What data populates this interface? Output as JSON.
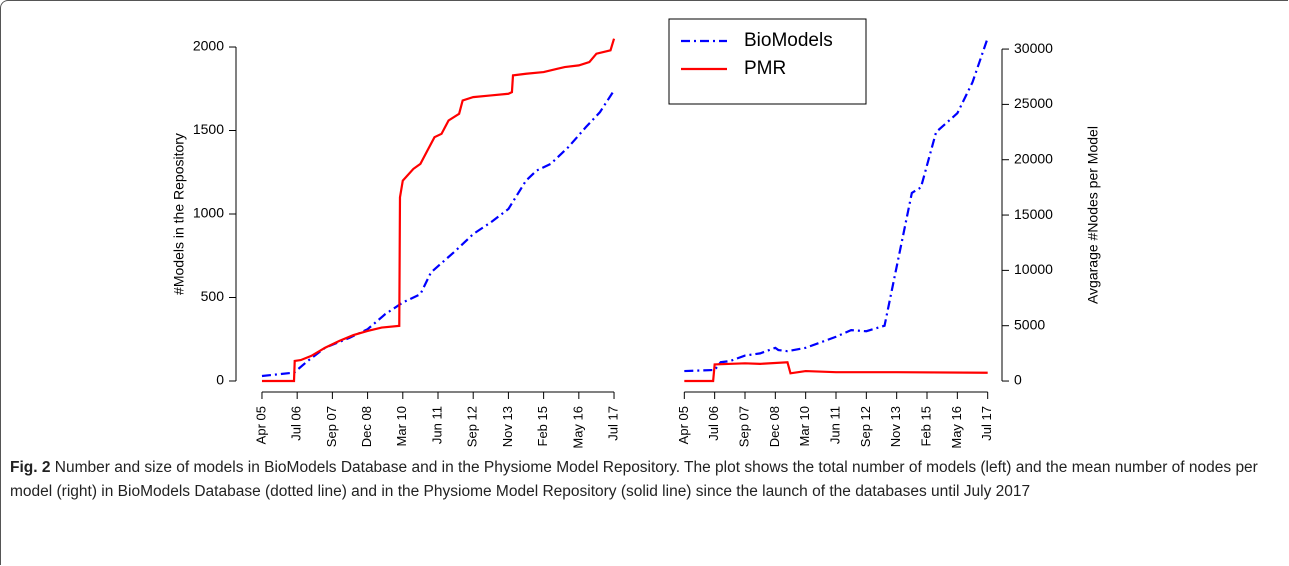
{
  "chart_data": [
    {
      "type": "line",
      "ylabel": "#Models in the Repository",
      "yaxis": "left",
      "xlim": [
        -0.34,
        10.34
      ],
      "xticks": [
        {
          "value": 0,
          "label": "Apr 05"
        },
        {
          "value": 1,
          "label": "Jul 06"
        },
        {
          "value": 2,
          "label": "Sep 07"
        },
        {
          "value": 3,
          "label": "Dec 08"
        },
        {
          "value": 4,
          "label": "Mar 10"
        },
        {
          "value": 5,
          "label": "Jun 11"
        },
        {
          "value": 6,
          "label": "Sep 12"
        },
        {
          "value": 7,
          "label": "Nov 13"
        },
        {
          "value": 8,
          "label": "Feb 15"
        },
        {
          "value": 9,
          "label": "May 16"
        },
        {
          "value": 10,
          "label": "Jul 17"
        }
      ],
      "ylim": [
        -48,
        2054
      ],
      "yticks": [
        0,
        500,
        1000,
        1500,
        2000
      ],
      "series": [
        {
          "name": "BioModels",
          "color": "#0000ff",
          "style": "dashdot",
          "x": [
            0,
            0.91,
            1.3,
            1.8,
            2.5,
            3.0,
            3.5,
            4.0,
            4.5,
            4.8,
            5.5,
            6.0,
            6.5,
            7.0,
            7.5,
            7.8,
            8.2,
            8.7,
            9.2,
            9.6,
            10.0
          ],
          "values": [
            30,
            50,
            120,
            200,
            260,
            310,
            400,
            470,
            520,
            650,
            780,
            880,
            950,
            1030,
            1200,
            1260,
            1300,
            1400,
            1520,
            1610,
            1740
          ]
        },
        {
          "name": "PMR",
          "color": "#ff0000",
          "style": "solid",
          "x": [
            0,
            0.91,
            0.93,
            1.1,
            1.4,
            1.8,
            2.2,
            2.6,
            3.0,
            3.4,
            3.9,
            3.92,
            4.0,
            4.3,
            4.5,
            4.7,
            4.9,
            5.1,
            5.3,
            5.6,
            5.7,
            6.0,
            6.5,
            7.0,
            7.1,
            7.13,
            7.5,
            8.0,
            8.4,
            8.6,
            9.0,
            9.3,
            9.5,
            9.9,
            10.0
          ],
          "values": [
            0,
            0,
            120,
            125,
            150,
            200,
            240,
            275,
            300,
            320,
            330,
            1100,
            1200,
            1270,
            1300,
            1380,
            1460,
            1480,
            1560,
            1600,
            1680,
            1700,
            1710,
            1720,
            1730,
            1830,
            1840,
            1850,
            1870,
            1880,
            1890,
            1910,
            1960,
            1980,
            2050
          ]
        }
      ]
    },
    {
      "type": "line",
      "ylabel": "Avgarage #Nodes per Model",
      "yaxis": "right",
      "legend": "top-left",
      "xlim": [
        -0.34,
        10.34
      ],
      "xticks": [
        {
          "value": 0,
          "label": "Apr 05"
        },
        {
          "value": 1,
          "label": "Jul 06"
        },
        {
          "value": 2,
          "label": "Sep 07"
        },
        {
          "value": 3,
          "label": "Dec 08"
        },
        {
          "value": 4,
          "label": "Mar 10"
        },
        {
          "value": 5,
          "label": "Jun 11"
        },
        {
          "value": 6,
          "label": "Sep 12"
        },
        {
          "value": 7,
          "label": "Nov 13"
        },
        {
          "value": 8,
          "label": "Feb 15"
        },
        {
          "value": 9,
          "label": "May 16"
        },
        {
          "value": 10,
          "label": "Jul 17"
        }
      ],
      "ylim": [
        -720,
        31000
      ],
      "yticks": [
        0,
        5000,
        10000,
        15000,
        20000,
        25000,
        30000
      ],
      "series": [
        {
          "name": "BioModels",
          "color": "#0000ff",
          "style": "dashdot",
          "x": [
            0,
            1.0,
            1.2,
            1.5,
            2.0,
            2.5,
            3.0,
            3.1,
            3.4,
            4.0,
            5.0,
            5.5,
            6.0,
            6.6,
            7.2,
            7.5,
            7.8,
            8.3,
            9.0,
            9.5,
            10.0
          ],
          "values": [
            900,
            1000,
            1700,
            1800,
            2300,
            2500,
            3000,
            2800,
            2700,
            3000,
            4000,
            4600,
            4500,
            5000,
            13000,
            17000,
            17500,
            22500,
            24200,
            27000,
            31000
          ]
        },
        {
          "name": "PMR",
          "color": "#ff0000",
          "style": "solid",
          "x": [
            0,
            0.95,
            1.0,
            2.0,
            2.5,
            3.4,
            3.5,
            4.0,
            5.0,
            7.0,
            10.0
          ],
          "values": [
            0,
            0,
            1500,
            1600,
            1550,
            1700,
            700,
            900,
            800,
            800,
            750
          ]
        }
      ]
    }
  ],
  "caption": {
    "label": "Fig. 2",
    "text": "Number and size of models in BioModels Database and in the Physiome Model Repository. The plot shows the total number of models (left) and the mean number of nodes per model (right) in BioModels Database (dotted line) and in the Physiome Model Repository (solid line) since the launch of the databases until July 2017"
  }
}
